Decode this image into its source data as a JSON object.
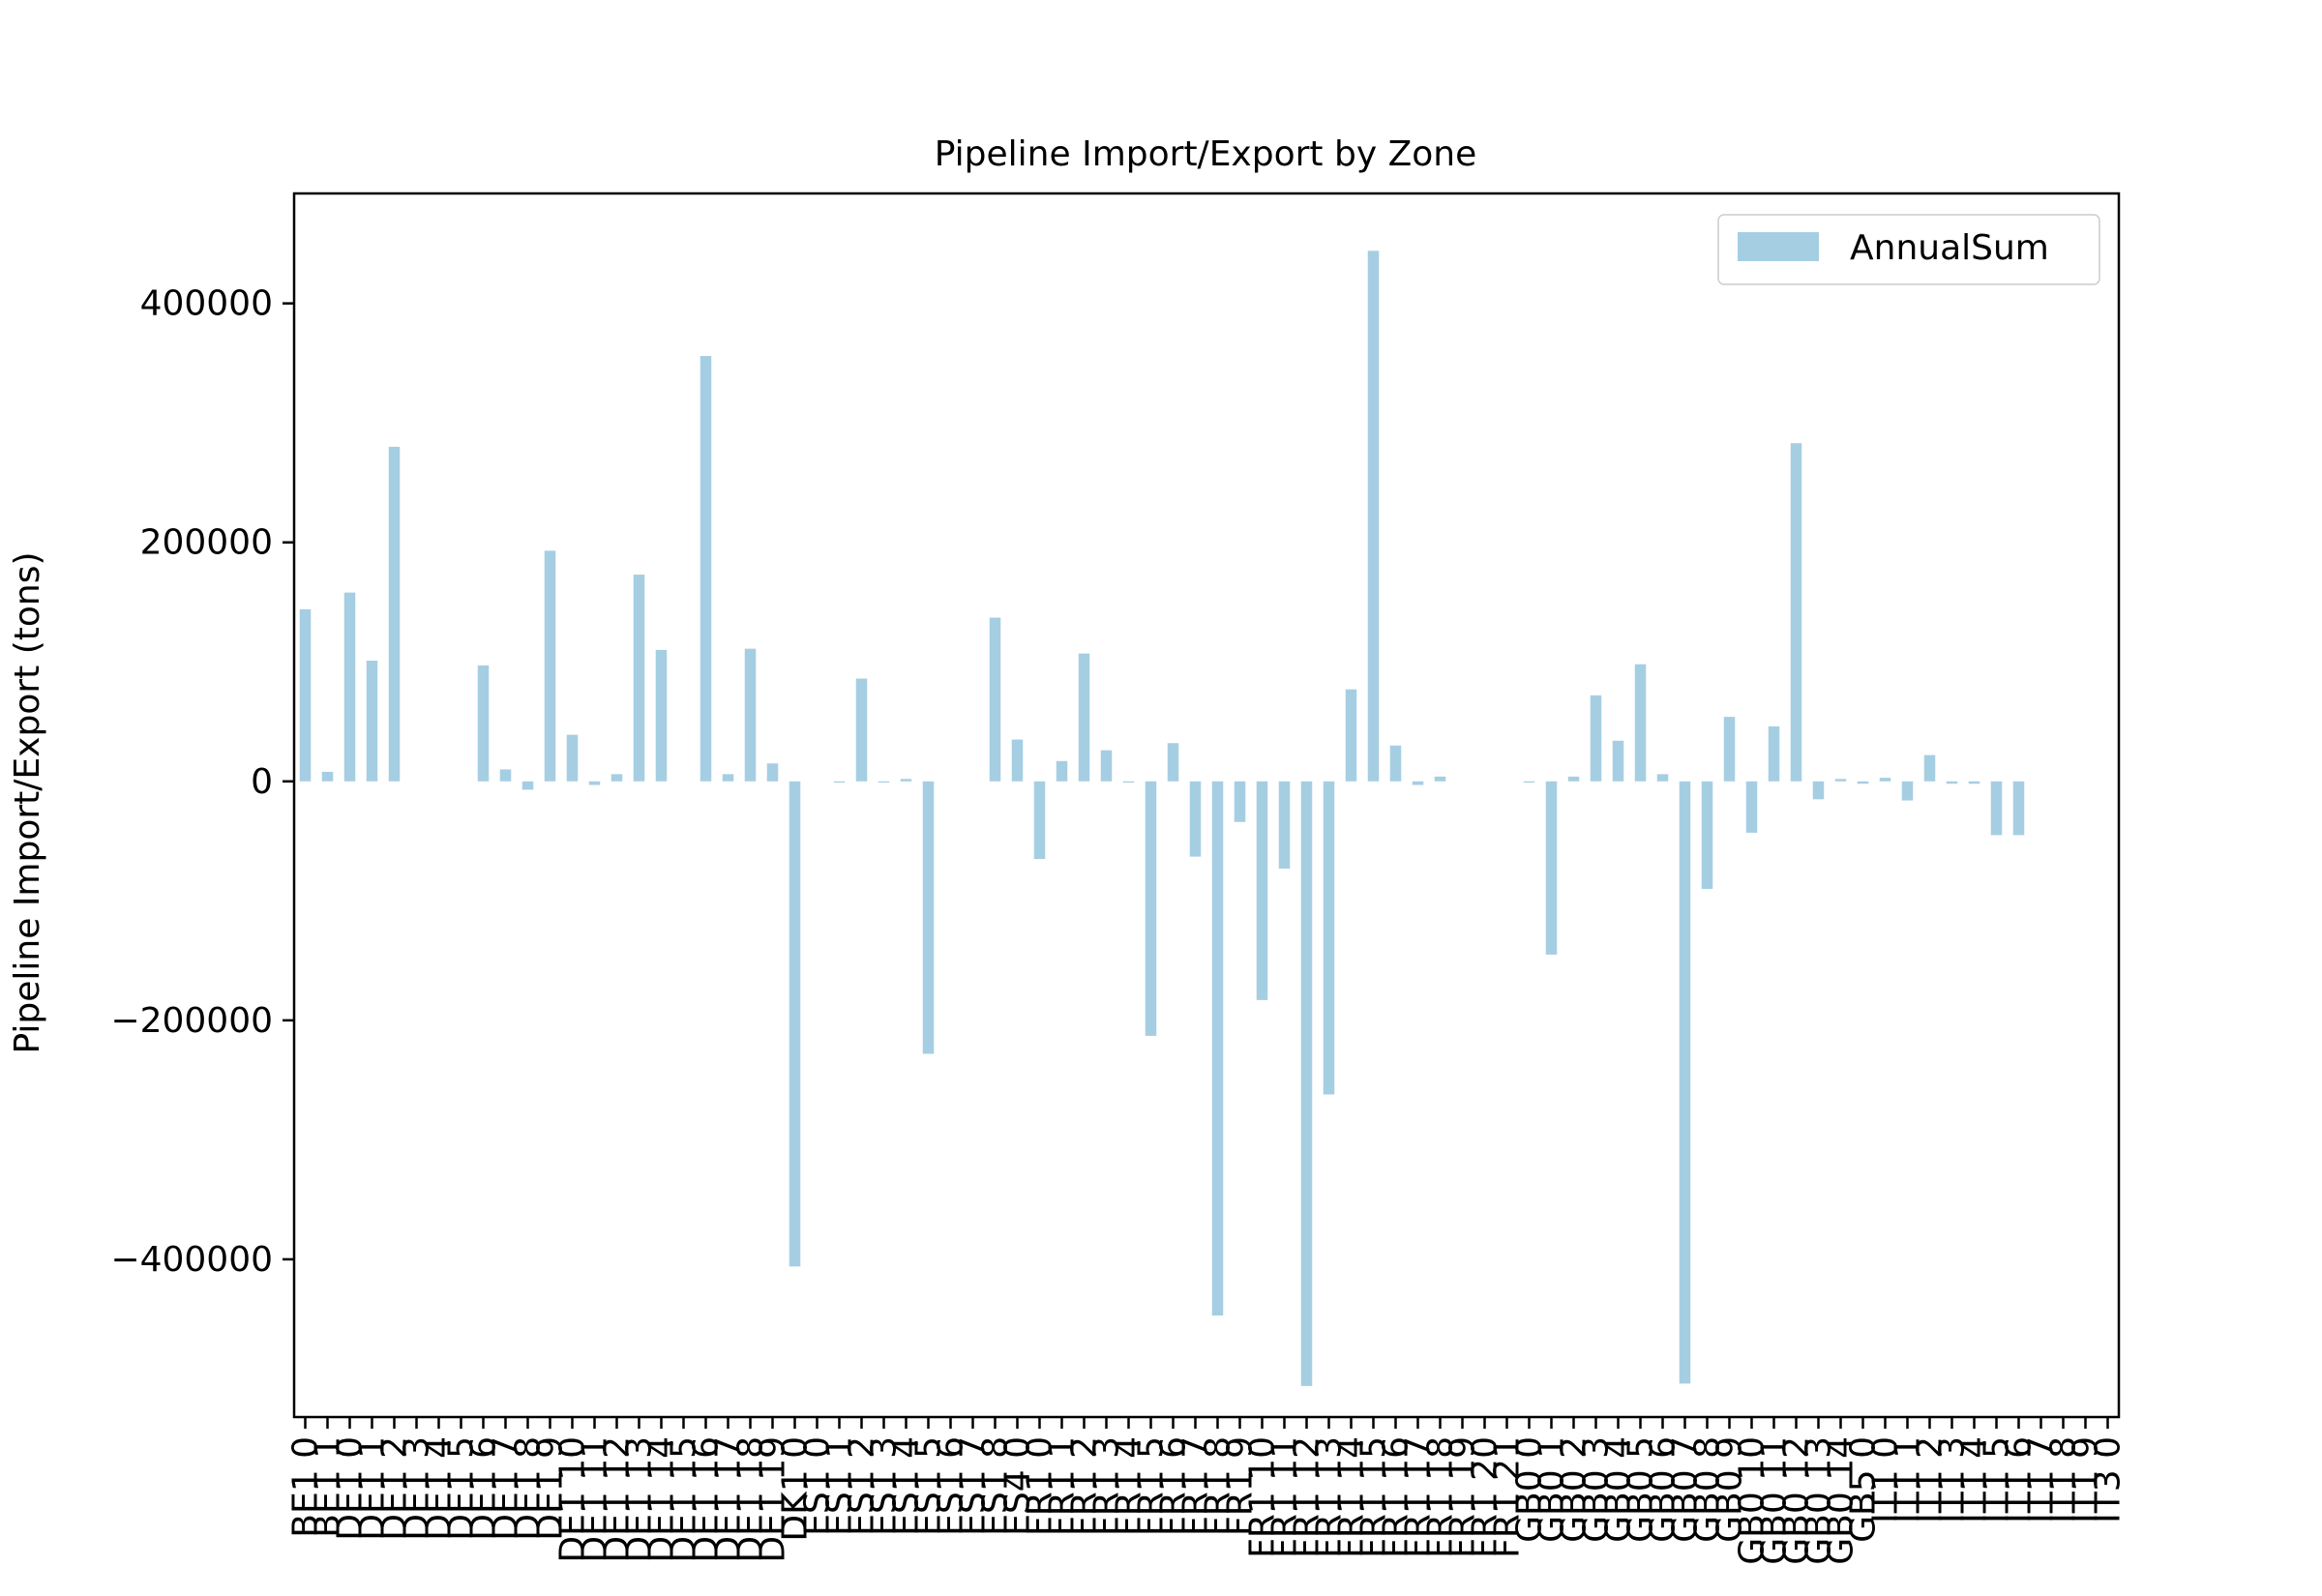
{
  "chart_data": {
    "type": "bar",
    "title": "Pipeline Import/Export by Zone",
    "xlabel": "",
    "ylabel": "Pipeline Import/Export (tons)",
    "ylim": [
      -532000,
      492000
    ],
    "yticks": [
      400000,
      200000,
      0,
      -200000,
      -400000
    ],
    "ytick_labels": [
      "400000",
      "200000",
      "0",
      "−200000",
      "−400000"
    ],
    "grid": false,
    "legend_position": "upper right",
    "colors": {
      "bar": "#a6cee3"
    },
    "categories": [
      "BE1 0",
      "BE1 1",
      "DE1 0",
      "DE1 1",
      "DE1 2",
      "DE1 3",
      "DE1 4",
      "DE1 5",
      "DE1 6",
      "DE1 7",
      "DE1 8",
      "DE1 9",
      "DE1 10",
      "DE1 11",
      "DE1 12",
      "DE1 13",
      "DE1 14",
      "DE1 15",
      "DE1 16",
      "DE1 17",
      "DE1 18",
      "DE1 19",
      "DK1 0",
      "ES1 0",
      "ES1 1",
      "ES1 2",
      "ES1 3",
      "ES1 4",
      "ES1 5",
      "ES1 6",
      "ES1 7",
      "ES1 8",
      "ES4 0",
      "FR1 0",
      "FR1 1",
      "FR1 2",
      "FR1 3",
      "FR1 4",
      "FR1 5",
      "FR1 6",
      "FR1 7",
      "FR1 8",
      "FR1 9",
      "FR1 10",
      "FR1 11",
      "FR1 12",
      "FR1 13",
      "FR1 14",
      "FR1 15",
      "FR1 16",
      "FR1 17",
      "FR1 18",
      "FR1 19",
      "FR1 20",
      "FR1 21",
      "GB0 0",
      "GB0 1",
      "GB0 2",
      "GB0 3",
      "GB0 4",
      "GB0 5",
      "GB0 6",
      "GB0 7",
      "GB0 8",
      "GB0 9",
      "GB0 10",
      "GB0 11",
      "GB0 12",
      "GB0 13",
      "GB0 14",
      "GB5 0",
      "IT1 0",
      "IT1 1",
      "IT1 2",
      "IT1 3",
      "IT1 4",
      "IT1 5",
      "IT1 6",
      "IT1 7",
      "IT1 8",
      "IT1 9",
      "IT3 0"
    ],
    "series": [
      {
        "name": "AnnualSum",
        "values": [
          144000,
          8000,
          158000,
          101000,
          280000,
          0,
          0,
          0,
          97000,
          10000,
          -7000,
          193000,
          39000,
          -3000,
          6000,
          173000,
          110000,
          0,
          356000,
          6000,
          111000,
          15000,
          -406000,
          0,
          -1000,
          86000,
          -1000,
          2000,
          -228000,
          0,
          0,
          137000,
          35000,
          -65000,
          17000,
          107000,
          26000,
          -1000,
          -213000,
          32000,
          -63000,
          -447000,
          -34000,
          -183000,
          -73000,
          -506000,
          -262000,
          77000,
          444000,
          30000,
          -3000,
          4000,
          0,
          0,
          0,
          -1000,
          -145000,
          4000,
          72000,
          34000,
          98000,
          6000,
          -504000,
          -90000,
          54000,
          -43000,
          46000,
          283000,
          -15000,
          2000,
          -2000,
          3000,
          -16000,
          22000,
          -2000,
          -2000,
          -45000,
          -45000,
          0,
          0,
          0,
          0
        ]
      }
    ]
  }
}
